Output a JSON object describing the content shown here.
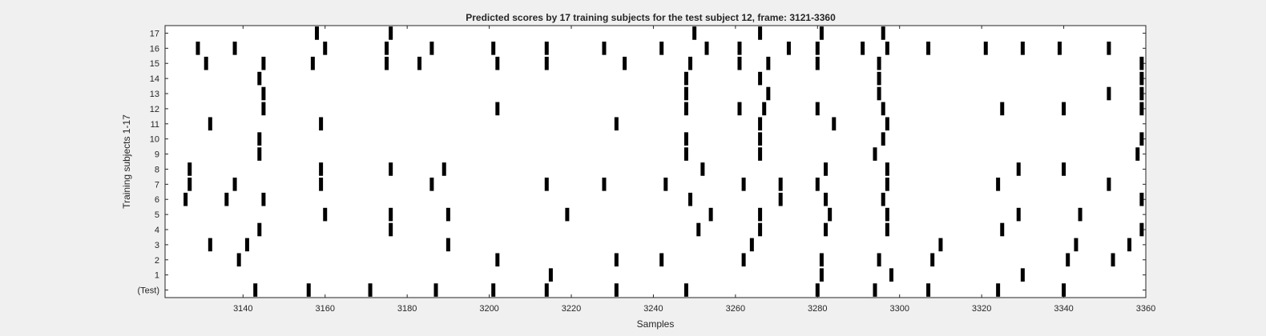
{
  "chart_data": {
    "type": "raster",
    "title": "Predicted scores by 17 training subjects for the test subject 12, frame: 3121-3360",
    "xlabel": "Samples",
    "ylabel": "Training subjects 1-17",
    "xlim": [
      3121,
      3360
    ],
    "ylim": [
      -0.5,
      17.5
    ],
    "x_ticks": [
      3140,
      3160,
      3180,
      3200,
      3220,
      3240,
      3260,
      3280,
      3300,
      3320,
      3340,
      3360
    ],
    "y_ticks": [
      0,
      1,
      2,
      3,
      4,
      5,
      6,
      7,
      8,
      9,
      10,
      11,
      12,
      13,
      14,
      15,
      16,
      17
    ],
    "y_tick_labels": [
      "(Test)",
      "1",
      "2",
      "3",
      "4",
      "5",
      "6",
      "7",
      "8",
      "9",
      "10",
      "11",
      "12",
      "13",
      "14",
      "15",
      "16",
      "17"
    ],
    "grid": false,
    "series": [
      {
        "name": "(Test)",
        "row": 0,
        "x": [
          3143,
          3156,
          3171,
          3187,
          3201,
          3214,
          3231,
          3248,
          3280,
          3294,
          3307,
          3324,
          3340
        ]
      },
      {
        "name": "1",
        "row": 1,
        "x": [
          3215,
          3281,
          3298,
          3330
        ]
      },
      {
        "name": "2",
        "row": 2,
        "x": [
          3139,
          3202,
          3231,
          3242,
          3262,
          3281,
          3295,
          3308,
          3341,
          3352
        ]
      },
      {
        "name": "3",
        "row": 3,
        "x": [
          3132,
          3141,
          3190,
          3264,
          3310,
          3343,
          3356
        ]
      },
      {
        "name": "4",
        "row": 4,
        "x": [
          3144,
          3176,
          3251,
          3266,
          3282,
          3297,
          3325,
          3359
        ]
      },
      {
        "name": "5",
        "row": 5,
        "x": [
          3160,
          3176,
          3190,
          3219,
          3254,
          3266,
          3283,
          3297,
          3329,
          3344
        ]
      },
      {
        "name": "6",
        "row": 6,
        "x": [
          3126,
          3136,
          3145,
          3249,
          3271,
          3282,
          3296,
          3359
        ]
      },
      {
        "name": "7",
        "row": 7,
        "x": [
          3127,
          3138,
          3159,
          3186,
          3214,
          3228,
          3243,
          3262,
          3271,
          3280,
          3297,
          3324,
          3351
        ]
      },
      {
        "name": "8",
        "row": 8,
        "x": [
          3127,
          3159,
          3176,
          3189,
          3252,
          3282,
          3297,
          3329,
          3340
        ]
      },
      {
        "name": "9",
        "row": 9,
        "x": [
          3144,
          3248,
          3266,
          3294,
          3358
        ]
      },
      {
        "name": "10",
        "row": 10,
        "x": [
          3144,
          3248,
          3266,
          3296,
          3359
        ]
      },
      {
        "name": "11",
        "row": 11,
        "x": [
          3132,
          3159,
          3231,
          3266,
          3284,
          3297
        ]
      },
      {
        "name": "12",
        "row": 12,
        "x": [
          3145,
          3202,
          3248,
          3261,
          3267,
          3280,
          3296,
          3325,
          3340,
          3359
        ]
      },
      {
        "name": "13",
        "row": 13,
        "x": [
          3145,
          3248,
          3268,
          3295,
          3351,
          3359
        ]
      },
      {
        "name": "14",
        "row": 14,
        "x": [
          3144,
          3248,
          3266,
          3295,
          3359
        ]
      },
      {
        "name": "15",
        "row": 15,
        "x": [
          3131,
          3145,
          3157,
          3175,
          3183,
          3202,
          3214,
          3233,
          3249,
          3261,
          3268,
          3280,
          3295,
          3359
        ]
      },
      {
        "name": "16",
        "row": 16,
        "x": [
          3129,
          3138,
          3160,
          3175,
          3186,
          3201,
          3214,
          3228,
          3242,
          3253,
          3261,
          3273,
          3280,
          3291,
          3297,
          3307,
          3321,
          3330,
          3339,
          3351
        ]
      },
      {
        "name": "17",
        "row": 17,
        "x": [
          3158,
          3176,
          3250,
          3266,
          3281,
          3296
        ]
      }
    ]
  }
}
